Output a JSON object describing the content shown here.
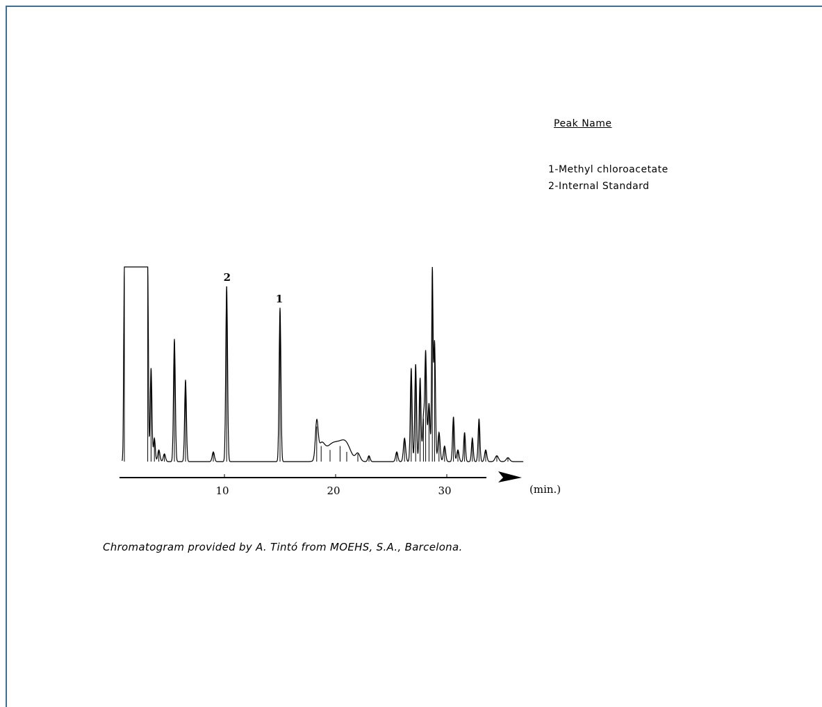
{
  "legend": {
    "title": "Peak Name",
    "items": [
      "1-Methyl chloroacetate",
      "2-Internal Standard"
    ]
  },
  "caption": "Chromatogram provided by A. Tintó from MOEHS, S.A., Barcelona.",
  "chart_data": {
    "type": "line",
    "title": "",
    "xlabel": "(min.)",
    "ylabel": "",
    "x_ticks": [
      10,
      20,
      30
    ],
    "xlim": [
      0,
      37
    ],
    "ylim": [
      0,
      100
    ],
    "grid": false,
    "peak_labels": [
      {
        "label": "2",
        "x": 10.3
      },
      {
        "label": "1",
        "x": 15.0
      }
    ],
    "peaks": [
      {
        "x": 1.0,
        "y": 100,
        "w": 0.06
      },
      {
        "x": 3.1,
        "y": 100,
        "w": 0.06
      },
      {
        "x": 3.4,
        "y": 48,
        "w": 0.08
      },
      {
        "x": 3.7,
        "y": 12,
        "w": 0.08
      },
      {
        "x": 4.1,
        "y": 6,
        "w": 0.1
      },
      {
        "x": 4.6,
        "y": 4,
        "w": 0.1
      },
      {
        "x": 5.5,
        "y": 63,
        "w": 0.08
      },
      {
        "x": 6.5,
        "y": 42,
        "w": 0.08
      },
      {
        "x": 9.0,
        "y": 5,
        "w": 0.1
      },
      {
        "x": 10.2,
        "y": 90,
        "w": 0.08
      },
      {
        "x": 15.0,
        "y": 79,
        "w": 0.08
      },
      {
        "x": 18.3,
        "y": 18,
        "w": 0.12
      },
      {
        "x": 18.7,
        "y": 8,
        "w": 0.3
      },
      {
        "x": 19.5,
        "y": 6,
        "w": 0.5
      },
      {
        "x": 20.4,
        "y": 8,
        "w": 0.6
      },
      {
        "x": 21.0,
        "y": 5,
        "w": 0.4
      },
      {
        "x": 22.0,
        "y": 4,
        "w": 0.2
      },
      {
        "x": 23.0,
        "y": 3,
        "w": 0.1
      },
      {
        "x": 25.5,
        "y": 5,
        "w": 0.1
      },
      {
        "x": 26.2,
        "y": 12,
        "w": 0.1
      },
      {
        "x": 26.8,
        "y": 48,
        "w": 0.08
      },
      {
        "x": 27.2,
        "y": 50,
        "w": 0.08
      },
      {
        "x": 27.6,
        "y": 43,
        "w": 0.08
      },
      {
        "x": 27.9,
        "y": 22,
        "w": 0.08
      },
      {
        "x": 28.1,
        "y": 56,
        "w": 0.08
      },
      {
        "x": 28.4,
        "y": 30,
        "w": 0.1
      },
      {
        "x": 28.7,
        "y": 98,
        "w": 0.06
      },
      {
        "x": 28.9,
        "y": 62,
        "w": 0.08
      },
      {
        "x": 29.3,
        "y": 15,
        "w": 0.1
      },
      {
        "x": 29.8,
        "y": 8,
        "w": 0.1
      },
      {
        "x": 30.6,
        "y": 23,
        "w": 0.08
      },
      {
        "x": 31.0,
        "y": 6,
        "w": 0.1
      },
      {
        "x": 31.6,
        "y": 15,
        "w": 0.08
      },
      {
        "x": 32.3,
        "y": 12,
        "w": 0.08
      },
      {
        "x": 32.9,
        "y": 22,
        "w": 0.08
      },
      {
        "x": 33.5,
        "y": 6,
        "w": 0.1
      },
      {
        "x": 34.5,
        "y": 3,
        "w": 0.15
      },
      {
        "x": 35.5,
        "y": 2,
        "w": 0.15
      }
    ]
  }
}
